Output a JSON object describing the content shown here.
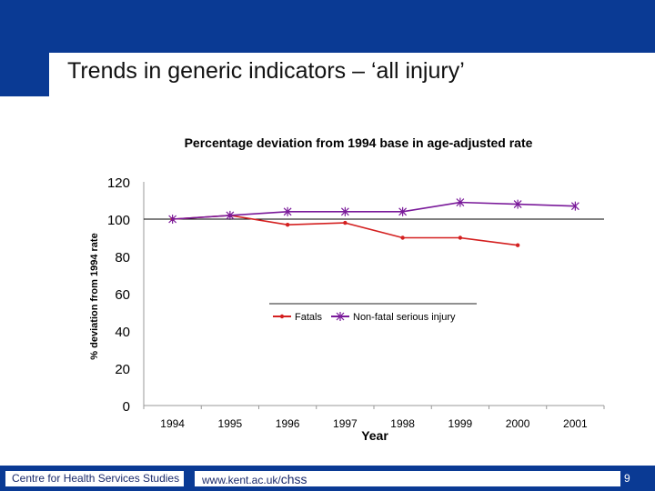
{
  "slide": {
    "title": "Trends in generic indicators – ‘all injury’",
    "footer_org": "Centre for Health Services Studies",
    "footer_url_prefix": "www.kent.ac.uk/",
    "footer_url_suffix": "chss",
    "page_number": "9",
    "colors": {
      "header": "#0a3a94",
      "fatals": "#d42020",
      "nonfatal": "#7a1a9a"
    }
  },
  "chart_data": {
    "type": "line",
    "title": "Percentage deviation from 1994 base in age-adjusted rate",
    "xlabel": "Year",
    "ylabel": "% deviation from 1994 rate",
    "categories": [
      "1994",
      "1995",
      "1996",
      "1997",
      "1998",
      "1999",
      "2000",
      "2001"
    ],
    "ylim": [
      0,
      120
    ],
    "yticks": [
      0,
      20,
      40,
      60,
      80,
      100,
      120
    ],
    "reference_line": 100,
    "grid": false,
    "legend_position": "center",
    "series": [
      {
        "name": "Fatals",
        "color": "#d42020",
        "marker": "dot",
        "values": [
          100,
          102,
          97,
          98,
          90,
          90,
          86,
          null
        ]
      },
      {
        "name": "Non-fatal serious injury",
        "color": "#7a1a9a",
        "marker": "star",
        "values": [
          100,
          102,
          104,
          104,
          104,
          109,
          108,
          107
        ]
      }
    ]
  }
}
